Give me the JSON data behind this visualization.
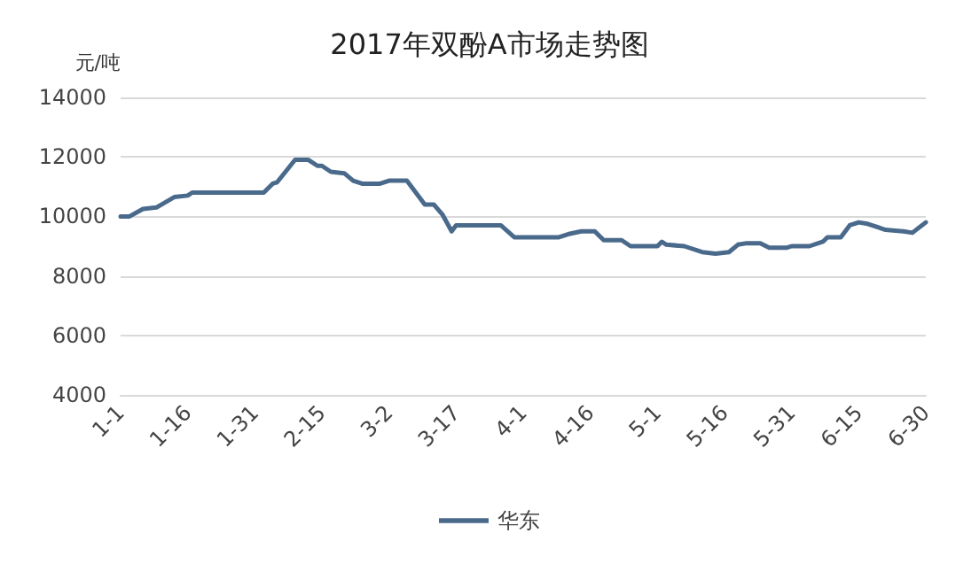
{
  "chart_data": {
    "type": "line",
    "title": "2017年双酚A市场走势图",
    "ylabel": "元/吨",
    "x": [
      "--01-01",
      "--01-03",
      "--01-06",
      "--01-09",
      "--01-13",
      "--01-16",
      "--01-17",
      "--02-02",
      "--02-04",
      "--02-05",
      "--02-09",
      "--02-12",
      "--02-14",
      "--02-15",
      "--02-17",
      "--02-20",
      "--02-22",
      "--02-24",
      "--02-28",
      "--03-02",
      "--03-06",
      "--03-10",
      "--03-12",
      "--03-14",
      "--03-16",
      "--03-17",
      "--03-27",
      "--03-30",
      "--04-09",
      "--04-11",
      "--04-14",
      "--04-17",
      "--04-19",
      "--04-23",
      "--04-25",
      "--05-01",
      "--05-02",
      "--05-03",
      "--05-07",
      "--05-11",
      "--05-14",
      "--05-17",
      "--05-19",
      "--05-21",
      "--05-24",
      "--05-26",
      "--05-30",
      "--05-31",
      "--06-04",
      "--06-07",
      "--06-08",
      "--06-11",
      "--06-13",
      "--06-15",
      "--06-17",
      "--06-19",
      "--06-21",
      "--06-25",
      "--06-27",
      "--06-30"
    ],
    "series": [
      {
        "name": "华东",
        "color": "#4a6a8c",
        "values": [
          10000,
          10000,
          10250,
          10300,
          10650,
          10700,
          10800,
          10800,
          11100,
          11150,
          11900,
          11900,
          11700,
          11700,
          11500,
          11450,
          11200,
          11100,
          11100,
          11200,
          11200,
          10400,
          10400,
          10050,
          9500,
          9700,
          9700,
          9300,
          9300,
          9400,
          9500,
          9500,
          9200,
          9200,
          9000,
          9000,
          9150,
          9050,
          9000,
          8800,
          8750,
          8800,
          9050,
          9100,
          9100,
          8950,
          8950,
          9000,
          9000,
          9150,
          9300,
          9300,
          9700,
          9800,
          9750,
          9650,
          9550,
          9500,
          9450,
          9800
        ]
      }
    ],
    "xlim": [
      "--01-01",
      "--06-30"
    ],
    "xticks": [
      {
        "value": "--01-01",
        "label": "1-1"
      },
      {
        "value": "--01-16",
        "label": "1-16"
      },
      {
        "value": "--01-31",
        "label": "1-31"
      },
      {
        "value": "--02-15",
        "label": "2-15"
      },
      {
        "value": "--03-02",
        "label": "3-2"
      },
      {
        "value": "--03-17",
        "label": "3-17"
      },
      {
        "value": "--04-01",
        "label": "4-1"
      },
      {
        "value": "--04-16",
        "label": "4-16"
      },
      {
        "value": "--05-01",
        "label": "5-1"
      },
      {
        "value": "--05-16",
        "label": "5-16"
      },
      {
        "value": "--05-31",
        "label": "5-31"
      },
      {
        "value": "--06-15",
        "label": "6-15"
      },
      {
        "value": "--06-30",
        "label": "6-30"
      }
    ],
    "ylim": [
      4000,
      14000
    ],
    "yticks": [
      4000,
      6000,
      8000,
      10000,
      12000,
      14000
    ],
    "grid": "y",
    "legend": "bottom"
  }
}
